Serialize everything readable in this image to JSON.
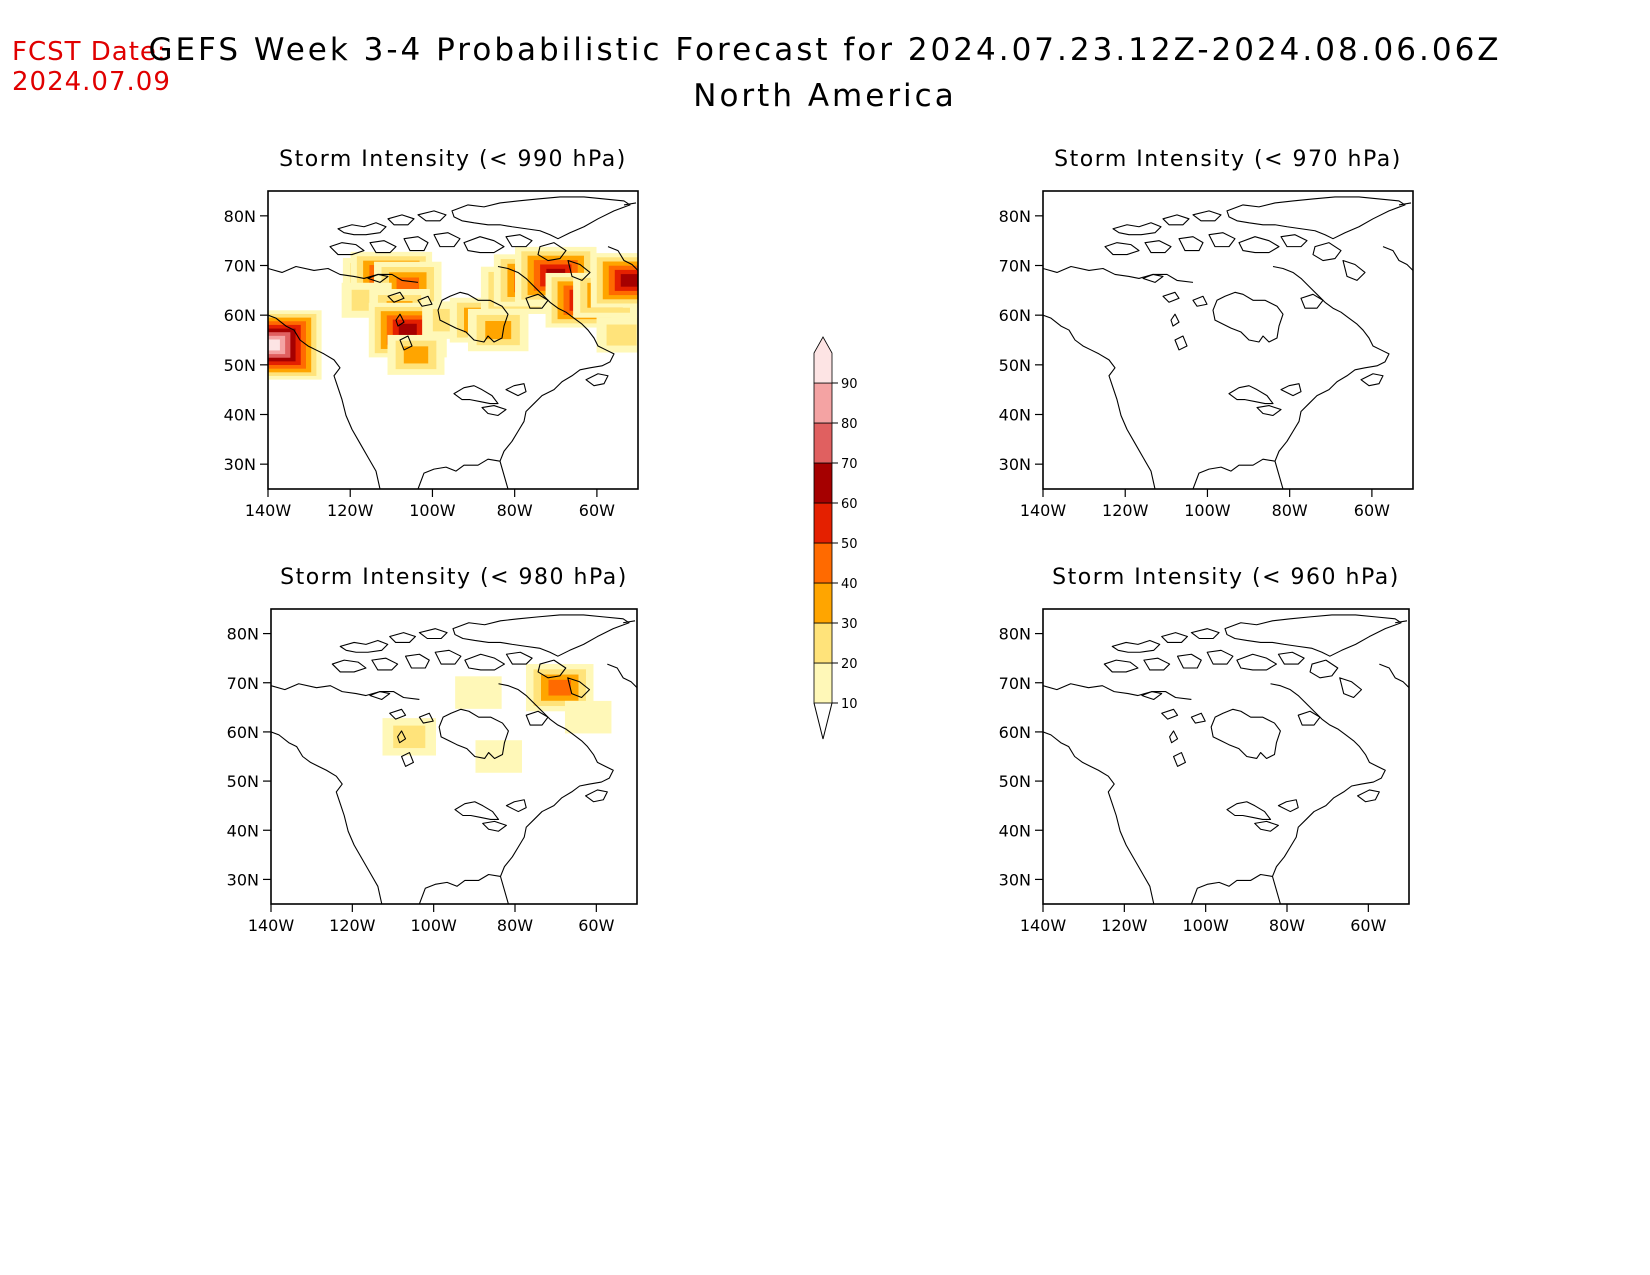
{
  "header": {
    "fcst_label": "FCST Date:",
    "fcst_date": "2024.07.09",
    "title": "GEFS Week 3-4 Probabilistic Forecast for 2024.07.23.12Z-2024.08.06.06Z",
    "subtitle": "North America"
  },
  "colorbar": {
    "levels": [
      "10",
      "20",
      "30",
      "40",
      "50",
      "60",
      "70",
      "80",
      "90"
    ],
    "colors": [
      "#fff8b8",
      "#ffe37a",
      "#ffa500",
      "#ff6a00",
      "#e42000",
      "#a50000",
      "#e06060",
      "#f4a3a3",
      "#fde4e4"
    ]
  },
  "panels": [
    {
      "title": "Storm Intensity (< 990 hPa)",
      "lat_labels": [
        "80N",
        "70N",
        "60N",
        "50N",
        "40N",
        "30N"
      ],
      "lon_labels": [
        "140W",
        "120W",
        "100W",
        "80W",
        "60W"
      ],
      "probability_areas": [
        {
          "lon": -114,
          "lat": 67,
          "prob": 40
        },
        {
          "lon": -110,
          "lat": 67,
          "prob": 65
        },
        {
          "lon": -106,
          "lat": 66,
          "prob": 45
        },
        {
          "lon": -116,
          "lat": 63,
          "prob": 20
        },
        {
          "lon": -108,
          "lat": 61,
          "prob": 35
        },
        {
          "lon": -106,
          "lat": 57,
          "prob": 60
        },
        {
          "lon": -104,
          "lat": 52,
          "prob": 30
        },
        {
          "lon": -96,
          "lat": 59,
          "prob": 25
        },
        {
          "lon": -88,
          "lat": 59,
          "prob": 40
        },
        {
          "lon": -84,
          "lat": 57,
          "prob": 35
        },
        {
          "lon": -80,
          "lat": 65,
          "prob": 45
        },
        {
          "lon": -76,
          "lat": 67,
          "prob": 55
        },
        {
          "lon": -70,
          "lat": 68,
          "prob": 65
        },
        {
          "lon": -63,
          "lat": 63,
          "prob": 60
        },
        {
          "lon": -58,
          "lat": 64,
          "prob": 40
        },
        {
          "lon": -52,
          "lat": 67,
          "prob": 60
        },
        {
          "lon": -54,
          "lat": 56,
          "prob": 20
        },
        {
          "lon": -139,
          "lat": 54,
          "prob": 90
        }
      ]
    },
    {
      "title": "Storm Intensity (< 970 hPa)",
      "lat_labels": [
        "80N",
        "70N",
        "60N",
        "50N",
        "40N",
        "30N"
      ],
      "lon_labels": [
        "140W",
        "120W",
        "100W",
        "80W",
        "60W"
      ],
      "probability_areas": []
    },
    {
      "title": "Storm Intensity (< 980 hPa)",
      "lat_labels": [
        "80N",
        "70N",
        "60N",
        "50N",
        "40N",
        "30N"
      ],
      "lon_labels": [
        "140W",
        "120W",
        "100W",
        "80W",
        "60W"
      ],
      "probability_areas": [
        {
          "lon": -106,
          "lat": 59,
          "prob": 25
        },
        {
          "lon": -84,
          "lat": 55,
          "prob": 15
        },
        {
          "lon": -69,
          "lat": 69,
          "prob": 45
        },
        {
          "lon": -62,
          "lat": 63,
          "prob": 15
        },
        {
          "lon": -89,
          "lat": 68,
          "prob": 15
        }
      ]
    },
    {
      "title": "Storm Intensity (< 960 hPa)",
      "lat_labels": [
        "80N",
        "70N",
        "60N",
        "50N",
        "40N",
        "30N"
      ],
      "lon_labels": [
        "140W",
        "120W",
        "100W",
        "80W",
        "60W"
      ],
      "probability_areas": []
    }
  ]
}
